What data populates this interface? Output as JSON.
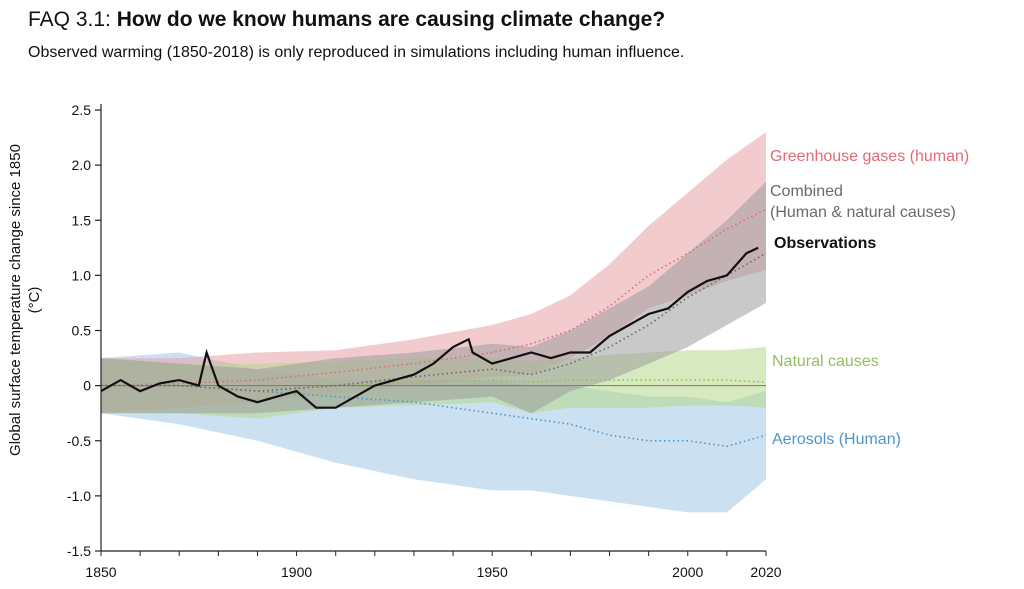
{
  "header": {
    "title_prefix": "FAQ 3.1:",
    "title_main": "How do we know humans are causing climate change?",
    "subtitle": "Observed warming (1850-2018) is only reproduced in simulations including human influence."
  },
  "chart_data": {
    "type": "line",
    "title": "How do we know humans are causing climate change?",
    "ylabel_line1": "Global surface temperature change since 1850",
    "ylabel_line2": "(°C)",
    "xlim": [
      1850,
      2020
    ],
    "ylim": [
      -1.5,
      2.5
    ],
    "x_ticks": [
      1850,
      1900,
      1950,
      2000,
      2020
    ],
    "x_tick_labels": [
      "1850",
      "1900",
      "1950",
      "2000",
      "2020"
    ],
    "y_ticks": [
      -1.5,
      -1.0,
      -0.5,
      0,
      0.5,
      1.0,
      1.5,
      2.0,
      2.5
    ],
    "y_tick_labels": [
      "-1.5",
      "-1.0",
      "-0.5",
      "0",
      "0.5",
      "1.0",
      "1.5",
      "2.0",
      "2.5"
    ],
    "zero_line": true,
    "grid": false,
    "legend_placement": "right",
    "colors": {
      "ghg": "#e8a1a7",
      "ghg_line": "#e06b74",
      "combined": "#9c9c9c",
      "combined_line": "#6a6a6a",
      "natural": "#b6d98a",
      "natural_line": "#93be5b",
      "aerosols": "#a9cdea",
      "aerosols_line": "#4f95c9",
      "observations": "#111111"
    },
    "legend": {
      "ghg": "Greenhouse gases (human)",
      "combined_1": "Combined",
      "combined_2": "(Human & natural causes)",
      "observations": "Observations",
      "natural": "Natural causes",
      "aerosols": "Aerosols (Human)"
    },
    "series": [
      {
        "name": "Greenhouse gases (human)",
        "kind": "range",
        "x": [
          1850,
          1870,
          1890,
          1910,
          1930,
          1950,
          1960,
          1970,
          1980,
          1990,
          2000,
          2010,
          2020
        ],
        "mean": [
          0.0,
          0.02,
          0.05,
          0.12,
          0.2,
          0.3,
          0.38,
          0.5,
          0.72,
          1.0,
          1.2,
          1.42,
          1.6
        ],
        "lower": [
          -0.25,
          -0.2,
          -0.15,
          -0.07,
          0.0,
          0.08,
          0.1,
          0.25,
          0.45,
          0.7,
          0.82,
          0.95,
          1.05
        ],
        "upper": [
          0.25,
          0.25,
          0.3,
          0.32,
          0.42,
          0.55,
          0.65,
          0.82,
          1.1,
          1.45,
          1.75,
          2.05,
          2.3
        ]
      },
      {
        "name": "Combined (Human & natural causes)",
        "kind": "range",
        "x": [
          1850,
          1870,
          1890,
          1910,
          1930,
          1950,
          1960,
          1970,
          1980,
          1990,
          2000,
          2010,
          2020
        ],
        "mean": [
          0.0,
          0.0,
          -0.05,
          0.0,
          0.08,
          0.15,
          0.1,
          0.2,
          0.35,
          0.55,
          0.8,
          1.0,
          1.2
        ],
        "lower": [
          -0.25,
          -0.25,
          -0.25,
          -0.2,
          -0.15,
          -0.1,
          -0.25,
          -0.05,
          0.05,
          0.2,
          0.35,
          0.55,
          0.75
        ],
        "upper": [
          0.25,
          0.2,
          0.15,
          0.25,
          0.3,
          0.38,
          0.35,
          0.5,
          0.7,
          0.9,
          1.2,
          1.5,
          1.85
        ]
      },
      {
        "name": "Natural causes",
        "kind": "range",
        "x": [
          1850,
          1870,
          1890,
          1910,
          1930,
          1950,
          1960,
          1970,
          1980,
          1990,
          2000,
          2010,
          2020
        ],
        "mean": [
          0.0,
          0.0,
          -0.05,
          0.0,
          0.03,
          0.05,
          0.03,
          0.05,
          0.05,
          0.05,
          0.05,
          0.05,
          0.03
        ],
        "lower": [
          -0.25,
          -0.25,
          -0.3,
          -0.2,
          -0.18,
          -0.15,
          -0.25,
          -0.2,
          -0.2,
          -0.2,
          -0.18,
          -0.18,
          -0.2
        ],
        "upper": [
          0.25,
          0.2,
          0.2,
          0.22,
          0.25,
          0.25,
          0.22,
          0.25,
          0.28,
          0.3,
          0.32,
          0.32,
          0.35
        ]
      },
      {
        "name": "Aerosols (Human)",
        "kind": "range",
        "x": [
          1850,
          1870,
          1890,
          1910,
          1930,
          1950,
          1960,
          1970,
          1980,
          1990,
          2000,
          2010,
          2020
        ],
        "mean": [
          0.0,
          0.0,
          -0.05,
          -0.1,
          -0.15,
          -0.25,
          -0.3,
          -0.35,
          -0.45,
          -0.5,
          -0.5,
          -0.55,
          -0.45
        ],
        "lower": [
          -0.25,
          -0.35,
          -0.5,
          -0.7,
          -0.85,
          -0.95,
          -0.95,
          -1.0,
          -1.05,
          -1.1,
          -1.15,
          -1.15,
          -0.85
        ],
        "upper": [
          0.25,
          0.3,
          0.15,
          0.05,
          0.05,
          0.05,
          0.0,
          0.0,
          -0.05,
          -0.1,
          -0.1,
          -0.15,
          -0.05
        ]
      },
      {
        "name": "Observations",
        "kind": "line",
        "x": [
          1850,
          1855,
          1860,
          1865,
          1870,
          1875,
          1877,
          1878,
          1880,
          1885,
          1890,
          1895,
          1900,
          1905,
          1910,
          1915,
          1920,
          1925,
          1930,
          1935,
          1940,
          1944,
          1945,
          1950,
          1955,
          1960,
          1965,
          1970,
          1975,
          1980,
          1985,
          1990,
          1995,
          2000,
          2005,
          2010,
          2015,
          2018
        ],
        "values": [
          -0.05,
          0.05,
          -0.05,
          0.02,
          0.05,
          0.0,
          0.3,
          0.2,
          0.0,
          -0.1,
          -0.15,
          -0.1,
          -0.05,
          -0.2,
          -0.2,
          -0.1,
          0.0,
          0.05,
          0.1,
          0.2,
          0.35,
          0.42,
          0.3,
          0.2,
          0.25,
          0.3,
          0.25,
          0.3,
          0.3,
          0.45,
          0.55,
          0.65,
          0.7,
          0.85,
          0.95,
          1.0,
          1.2,
          1.25
        ]
      }
    ]
  }
}
